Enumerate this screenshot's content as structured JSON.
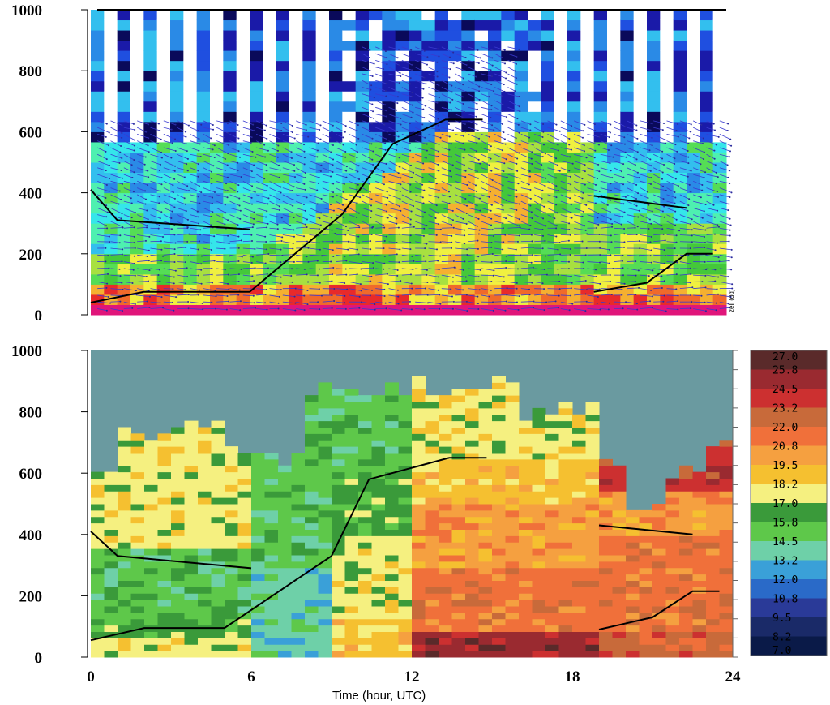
{
  "chart_data": [
    {
      "type": "heatmap",
      "panel": "top",
      "y_ticks": [
        "0",
        "200",
        "400",
        "600",
        "800",
        "1000"
      ],
      "ylim": [
        0,
        1000
      ],
      "xlim": [
        0,
        24
      ],
      "side_label": "zell (dd)",
      "white_gaps_above": 580,
      "colormap": [
        "#0a0a5a",
        "#1a1aa8",
        "#1f4fe0",
        "#2a8ae6",
        "#33bfee",
        "#35e6ea",
        "#4ef0b0",
        "#55dd55",
        "#44c83a",
        "#a8e040",
        "#f0f040",
        "#f5b030",
        "#f06a2a",
        "#e82a2a",
        "#e0157a"
      ],
      "wind_vectors": true,
      "boundary_layer_lines": [
        {
          "name": "main",
          "points": [
            [
              0,
              40
            ],
            [
              2,
              75
            ],
            [
              6,
              75
            ],
            [
              9.5,
              330
            ],
            [
              11.4,
              560
            ],
            [
              13.4,
              640
            ],
            [
              14.8,
              640
            ]
          ]
        },
        {
          "name": "residual",
          "points": [
            [
              0,
              410
            ],
            [
              1,
              310
            ],
            [
              6,
              280
            ]
          ]
        },
        {
          "name": "late-top",
          "points": [
            [
              19,
              390
            ],
            [
              22.5,
              350
            ]
          ]
        },
        {
          "name": "late-bottom",
          "points": [
            [
              19,
              75
            ],
            [
              21,
              105
            ],
            [
              22.5,
              200
            ],
            [
              23.5,
              200
            ]
          ]
        }
      ]
    },
    {
      "type": "heatmap",
      "panel": "bottom",
      "y_ticks": [
        "0",
        "200",
        "400",
        "600",
        "800",
        "1000"
      ],
      "x_ticks": [
        "0",
        "6",
        "12",
        "18",
        "24"
      ],
      "xlabel": "Time (hour, UTC)",
      "ylim": [
        0,
        1000
      ],
      "xlim": [
        0,
        24
      ],
      "colorbar": {
        "labels": [
          "27.0",
          "25.8",
          "24.5",
          "23.2",
          "22.0",
          "20.8",
          "19.5",
          "18.2",
          "17.0",
          "15.8",
          "14.5",
          "13.2",
          "12.0",
          "10.8",
          "9.5",
          "8.2",
          "7.0"
        ],
        "colors": [
          "#5a2a2a",
          "#9a2a30",
          "#cc3030",
          "#c86a3a",
          "#f0703a",
          "#f5a040",
          "#f5c030",
          "#f5f080",
          "#3a9a3a",
          "#5ec84a",
          "#6ed0a8",
          "#3aa0d8",
          "#2a6ac8",
          "#2a3a98",
          "#1a2a68",
          "#0a1a48"
        ]
      },
      "background_color": "#6a9aa0",
      "boundary_layer_lines": [
        {
          "name": "main",
          "points": [
            [
              0,
              55
            ],
            [
              2,
              95
            ],
            [
              5,
              95
            ],
            [
              9,
              330
            ],
            [
              10.4,
              580
            ],
            [
              13.4,
              650
            ],
            [
              14.8,
              650
            ]
          ]
        },
        {
          "name": "residual",
          "points": [
            [
              0,
              410
            ],
            [
              1,
              330
            ],
            [
              6,
              290
            ]
          ]
        },
        {
          "name": "late-top",
          "points": [
            [
              19,
              430
            ],
            [
              22.5,
              400
            ]
          ]
        },
        {
          "name": "late-bottom",
          "points": [
            [
              19,
              90
            ],
            [
              21,
              130
            ],
            [
              22.5,
              215
            ],
            [
              23.5,
              215
            ]
          ]
        }
      ]
    }
  ]
}
